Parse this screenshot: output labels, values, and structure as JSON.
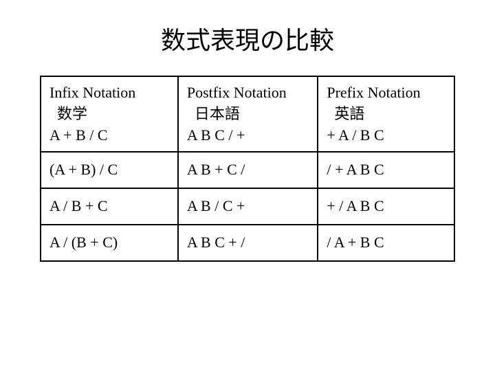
{
  "title": "数式表現の比較",
  "table": {
    "type": "table",
    "column_count": 3,
    "border_color": "#000000",
    "border_width": 2,
    "background_color": "#ffffff",
    "text_color": "#000000",
    "title_fontsize": 36,
    "cell_fontsize": 22,
    "header": {
      "col1_line1": "Infix Notation",
      "col1_line2": "数学",
      "col1_line3": "A + B / C",
      "col2_line1": "Postfix Notation",
      "col2_line2": "日本語",
      "col2_line3": "A B C / +",
      "col3_line1": "Prefix Notation",
      "col3_line2": "英語",
      "col3_line3": "+ A / B C"
    },
    "rows": [
      {
        "c1": "(A + B) / C",
        "c2": "A B + C /",
        "c3": "/ + A B C"
      },
      {
        "c1": "A / B + C",
        "c2": "A B / C +",
        "c3": "+ / A B C"
      },
      {
        "c1": "A / (B + C)",
        "c2": "A B C + /",
        "c3": "/ A + B C"
      }
    ]
  }
}
